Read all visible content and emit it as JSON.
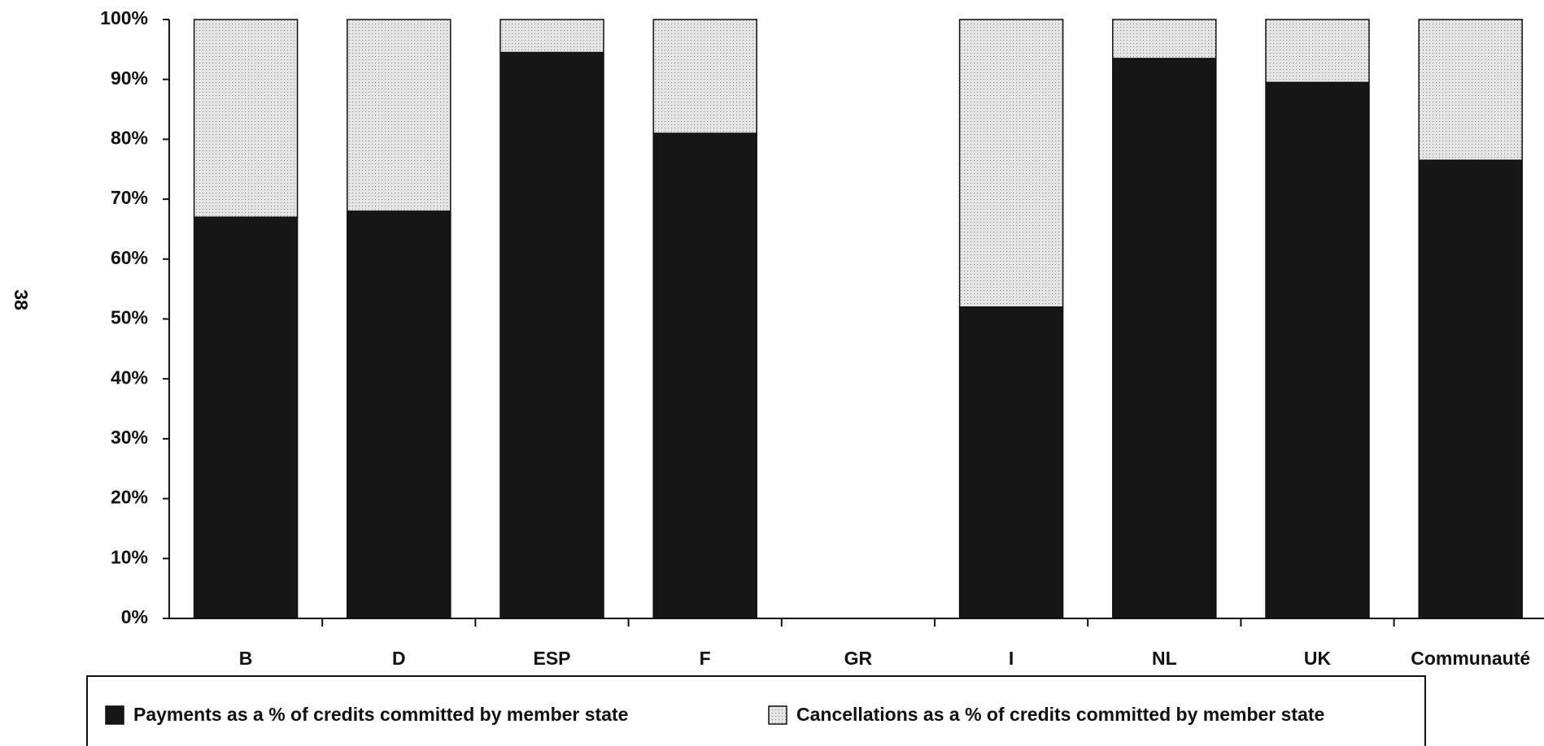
{
  "page_number": "38",
  "chart_data": {
    "type": "stacked_bar",
    "categories": [
      "B",
      "D",
      "ESP",
      "F",
      "GR",
      "I",
      "NL",
      "UK",
      "Communauté"
    ],
    "series": [
      {
        "name": "Payments as a % of credits committed by member state",
        "color": "#161616",
        "values": [
          67,
          68,
          94.5,
          81,
          null,
          52,
          93.5,
          89.5,
          76.5
        ]
      },
      {
        "name": "Cancellations as a % of credits committed by member state",
        "color": "#dcdcdc",
        "values": [
          33,
          32,
          5.5,
          19,
          null,
          48,
          6.5,
          10.5,
          23.5
        ]
      }
    ],
    "ylim": [
      0,
      100
    ],
    "yticks": [
      {
        "value": 0,
        "label": "0%"
      },
      {
        "value": 10,
        "label": "10%"
      },
      {
        "value": 20,
        "label": "20%"
      },
      {
        "value": 30,
        "label": "30%"
      },
      {
        "value": 40,
        "label": "40%"
      },
      {
        "value": 50,
        "label": "50%"
      },
      {
        "value": 60,
        "label": "60%"
      },
      {
        "value": 70,
        "label": "70%"
      },
      {
        "value": 80,
        "label": "80%"
      },
      {
        "value": 90,
        "label": "90%"
      },
      {
        "value": 100,
        "label": "100%"
      }
    ],
    "legend": "bottom"
  }
}
